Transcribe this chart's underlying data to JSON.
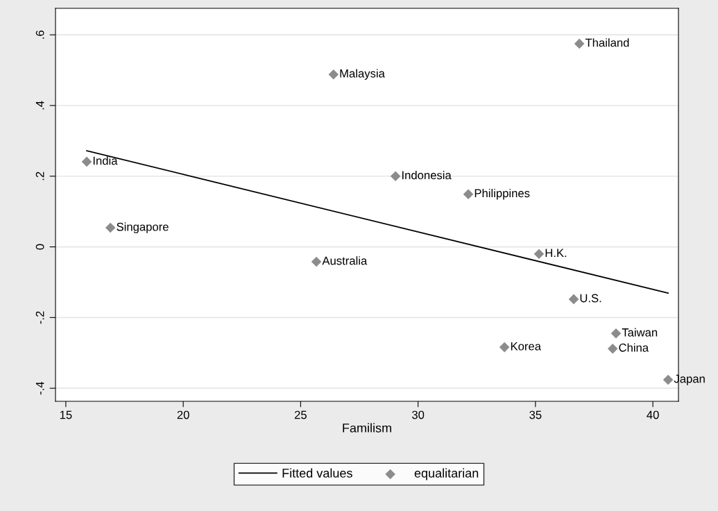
{
  "chart_data": {
    "type": "scatter",
    "xlabel": "Familism",
    "xlim": [
      14.56,
      41.09
    ],
    "ylim": [
      -0.437,
      0.675
    ],
    "xticks": [
      15,
      20,
      25,
      30,
      35,
      40
    ],
    "yticks": [
      {
        "value": -0.4,
        "label": "-.4"
      },
      {
        "value": -0.2,
        "label": "-.2"
      },
      {
        "value": 0,
        "label": "0"
      },
      {
        "value": 0.2,
        "label": ".2"
      },
      {
        "value": 0.4,
        "label": ".4"
      },
      {
        "value": 0.6,
        "label": ".6"
      }
    ],
    "grid": "y",
    "legend": "bottom",
    "series": [
      {
        "name": "Fitted values",
        "type": "line",
        "color": "#000000",
        "marker": "none",
        "line_style": "solid",
        "x": [
          15.89,
          40.65
        ],
        "values": [
          0.272,
          -0.131
        ]
      },
      {
        "name": "equalitarian",
        "color": "#8c8c8c",
        "marker": "diamond",
        "x": [
          15.89,
          16.9,
          26.4,
          25.67,
          29.04,
          32.14,
          35.15,
          36.63,
          36.87,
          33.68,
          38.43,
          38.29,
          40.65
        ],
        "values": [
          0.241,
          0.054,
          0.488,
          -0.042,
          0.2,
          0.149,
          -0.02,
          -0.148,
          0.575,
          -0.284,
          -0.245,
          -0.288,
          -0.376
        ]
      }
    ],
    "annotations": [
      {
        "text": "India",
        "x": 15.89,
        "y": 0.241
      },
      {
        "text": "Singapore",
        "x": 16.9,
        "y": 0.054
      },
      {
        "text": "Malaysia",
        "x": 26.4,
        "y": 0.488
      },
      {
        "text": "Australia",
        "x": 25.67,
        "y": -0.042
      },
      {
        "text": "Indonesia",
        "x": 29.04,
        "y": 0.2
      },
      {
        "text": "Philippines",
        "x": 32.14,
        "y": 0.149
      },
      {
        "text": "H.K.",
        "x": 35.15,
        "y": -0.02
      },
      {
        "text": "U.S.",
        "x": 36.63,
        "y": -0.148
      },
      {
        "text": "Thailand",
        "x": 36.87,
        "y": 0.575
      },
      {
        "text": "Korea",
        "x": 33.68,
        "y": -0.284
      },
      {
        "text": "Taiwan",
        "x": 38.43,
        "y": -0.245
      },
      {
        "text": "China",
        "x": 38.29,
        "y": -0.288
      },
      {
        "text": "Japan",
        "x": 40.65,
        "y": -0.376
      }
    ]
  }
}
